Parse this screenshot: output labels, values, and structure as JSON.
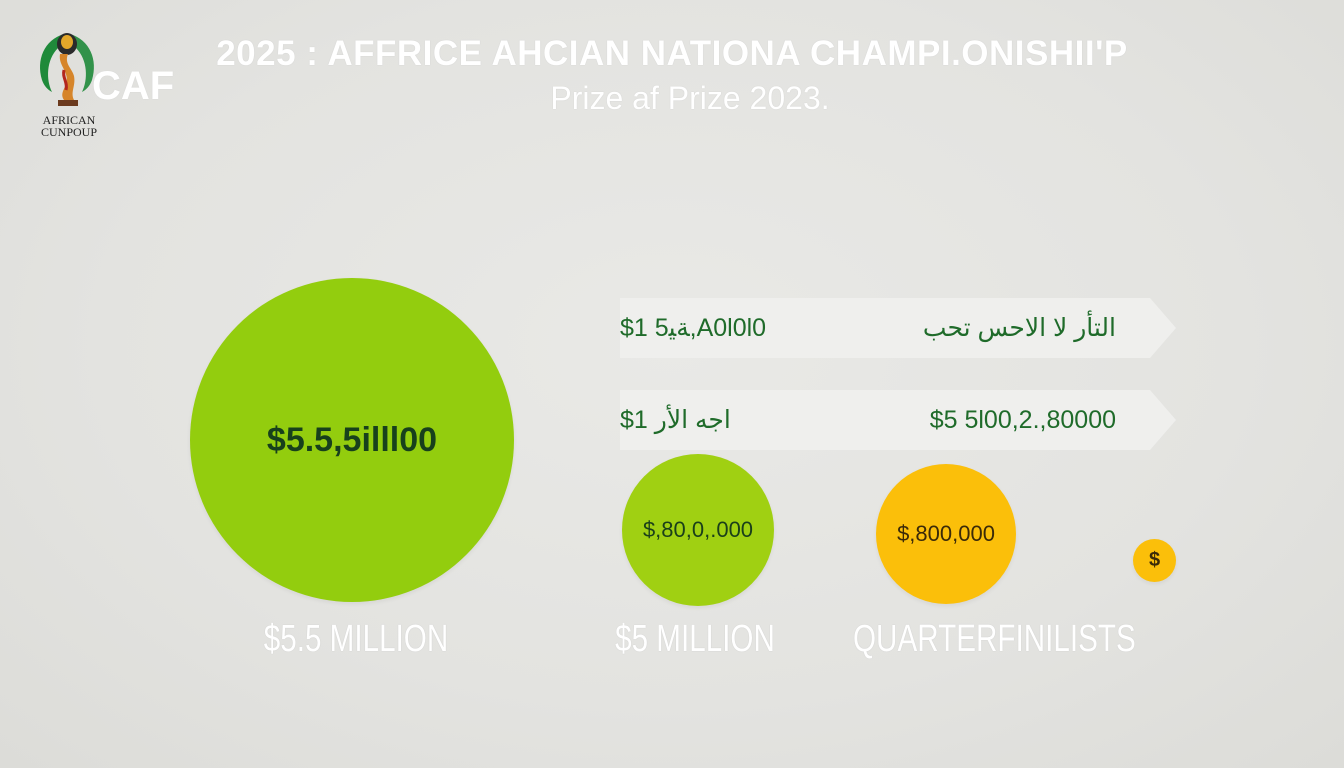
{
  "logo": {
    "brand": "CAF",
    "caption": "AFRICAN CUNPOUP",
    "icon": "trophy-logo-icon"
  },
  "header": {
    "title": "2025 : AFFRICE AHCIAN NATIONA CHAMPI.ONISHII'P",
    "subtitle": "Prize af Prize 2023."
  },
  "circles": {
    "big_value": "$5.5,5illl00",
    "mid_value": "$,80,0,.000",
    "gold_value": "$,800,000",
    "tiny_symbol": "$"
  },
  "banners": [
    {
      "left": "$1 ﺔﻴ5,A0l0l0",
      "right": "ﺍﻟﺘﺄﺭ ﻟﺎ ﺍﻟﺎﺣﺲ ﺗﺤﺐ"
    },
    {
      "left": "$1 ﺍﺟﻪ ﺍﻟﺄﺭ",
      "right": "$5 5l00,2.,80000"
    }
  ],
  "labels": {
    "first": "$5.5 MILLION",
    "second": "$5 MILLION",
    "third": "QUARTERFINILISTS"
  },
  "colors": {
    "background": "#e4e4e1",
    "lime": "#93cd0e",
    "gold": "#fbbf0a",
    "text_green": "#1f6b2a",
    "banner": "#efefed"
  }
}
